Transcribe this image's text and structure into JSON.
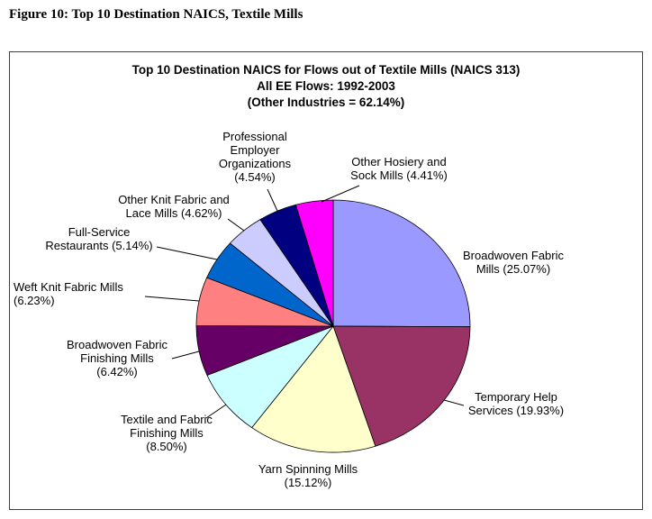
{
  "figure_caption": "Figure 10: Top 10 Destination NAICS, Textile Mills",
  "chart_data": {
    "type": "pie",
    "title_lines": [
      "Top 10 Destination NAICS for Flows out of Textile Mills (NAICS 313)",
      "All EE Flows: 1992-2003",
      "(Other Industries = 62.14%)"
    ],
    "unit": "%",
    "start_angle_deg": 0,
    "direction": "clockwise",
    "other_industries_pct": 62.14,
    "slices": [
      {
        "label": "Broadwoven Fabric Mills",
        "value": 25.07,
        "color": "#9999FF",
        "label_lines": [
          "Broadwoven Fabric",
          "Mills (25.07%)"
        ]
      },
      {
        "label": "Temporary Help Services",
        "value": 19.93,
        "color": "#993366",
        "label_lines": [
          "Temporary Help",
          "Services (19.93%)"
        ]
      },
      {
        "label": "Yarn Spinning Mills",
        "value": 15.12,
        "color": "#FFFFCC",
        "label_lines": [
          "Yarn Spinning Mills",
          "(15.12%)"
        ]
      },
      {
        "label": "Textile and Fabric Finishing Mills",
        "value": 8.5,
        "color": "#CCFFFF",
        "label_lines": [
          "Textile and Fabric",
          "Finishing Mills",
          "(8.50%)"
        ]
      },
      {
        "label": "Broadwoven Fabric Finishing Mills",
        "value": 6.42,
        "color": "#660066",
        "label_lines": [
          "Broadwoven Fabric",
          "Finishing Mills",
          "(6.42%)"
        ]
      },
      {
        "label": "Weft Knit Fabric Mills",
        "value": 6.23,
        "color": "#FF8080",
        "label_lines": [
          "Weft Knit Fabric Mills",
          "(6.23%)"
        ]
      },
      {
        "label": "Full-Service Restaurants",
        "value": 5.14,
        "color": "#0066CC",
        "label_lines": [
          "Full-Service",
          "Restaurants (5.14%)"
        ]
      },
      {
        "label": "Other Knit Fabric and Lace Mills",
        "value": 4.62,
        "color": "#CCCCFF",
        "label_lines": [
          "Other Knit Fabric and",
          "Lace Mills (4.62%)"
        ]
      },
      {
        "label": "Professional Employer Organizations",
        "value": 4.54,
        "color": "#000080",
        "label_lines": [
          "Professional",
          "Employer",
          "Organizations",
          "(4.54%)"
        ]
      },
      {
        "label": "Other Hosiery and Sock Mills",
        "value": 4.41,
        "color": "#FF00FF",
        "label_lines": [
          "Other Hosiery and",
          "Sock Mills (4.41%)"
        ]
      }
    ]
  }
}
